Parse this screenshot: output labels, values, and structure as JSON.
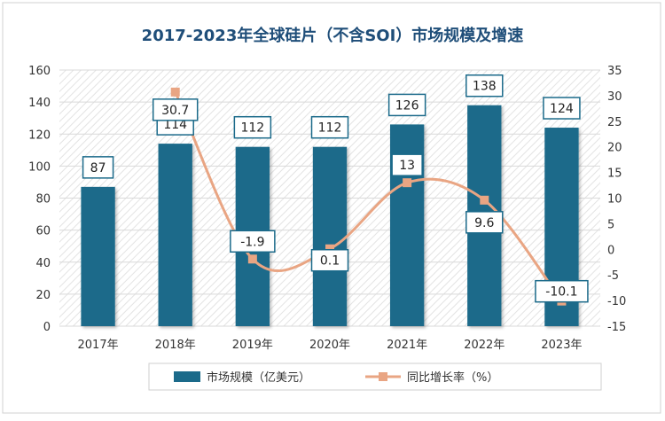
{
  "chart_data": {
    "type": "bar",
    "title": "2017-2023年全球硅片（不含SOI）市场规模及增速",
    "categories": [
      "2017年",
      "2018年",
      "2019年",
      "2020年",
      "2021年",
      "2022年",
      "2023年"
    ],
    "series": [
      {
        "name": "市场规模（亿美元）",
        "type": "bar",
        "axis": "left",
        "values": [
          87,
          114,
          112,
          112,
          126,
          138,
          124
        ],
        "color": "#1b6a8a"
      },
      {
        "name": "同比增长率（%）",
        "type": "line",
        "axis": "right",
        "values": [
          null,
          30.7,
          -1.9,
          0.1,
          13,
          9.6,
          -10.1
        ],
        "color": "#e9a583"
      }
    ],
    "y_left": {
      "range": [
        0,
        160
      ],
      "ticks": [
        0,
        20,
        40,
        60,
        80,
        100,
        120,
        140,
        160
      ]
    },
    "y_right": {
      "range": [
        -15,
        35
      ],
      "ticks": [
        -15,
        -10,
        -5,
        0,
        5,
        10,
        15,
        20,
        25,
        30,
        35
      ]
    },
    "bar_labels": [
      "87",
      "114",
      "112",
      "112",
      "126",
      "138",
      "124"
    ],
    "line_labels": [
      "",
      "30.7",
      "-1.9",
      "0.1",
      "13",
      "9.6",
      "-10.1"
    ],
    "legend_position": "bottom",
    "colors": {
      "bar": "#1b6a8a",
      "line": "#e9a583",
      "title": "#1f4e79",
      "label_border": "#1b6a8a"
    }
  }
}
